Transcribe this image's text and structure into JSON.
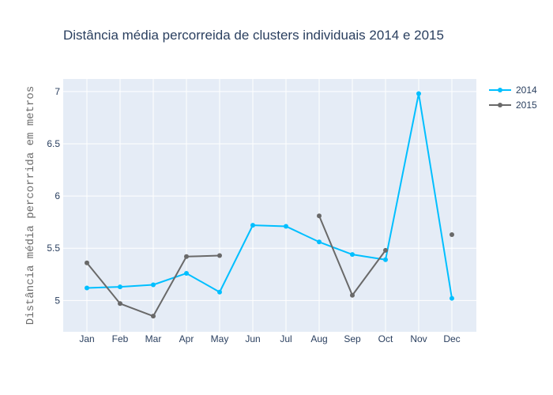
{
  "chart_data": {
    "type": "line",
    "title": "Distância média percorreida de clusters individuais 2014 e 2015",
    "xlabel": "",
    "ylabel": "Distância média percorrida em metros",
    "categories": [
      "Jan",
      "Feb",
      "Mar",
      "Apr",
      "May",
      "Jun",
      "Jul",
      "Aug",
      "Sep",
      "Oct",
      "Nov",
      "Dec"
    ],
    "ylim": [
      4.7,
      7.12
    ],
    "yticks": [
      5,
      5.5,
      6,
      6.5,
      7
    ],
    "ytick_labels": [
      "5",
      "5.5",
      "6",
      "6.5",
      "7"
    ],
    "grid": true,
    "legend_position": "top-right",
    "series": [
      {
        "name": "2014",
        "color": "#00bfff",
        "values": [
          5.12,
          5.13,
          5.15,
          5.26,
          5.08,
          5.72,
          5.71,
          5.56,
          5.44,
          5.39,
          6.98,
          5.02
        ]
      },
      {
        "name": "2015",
        "color": "#696969",
        "values": [
          5.36,
          4.97,
          4.85,
          5.42,
          5.43,
          null,
          null,
          5.81,
          5.05,
          5.48,
          null,
          5.63
        ]
      }
    ]
  }
}
